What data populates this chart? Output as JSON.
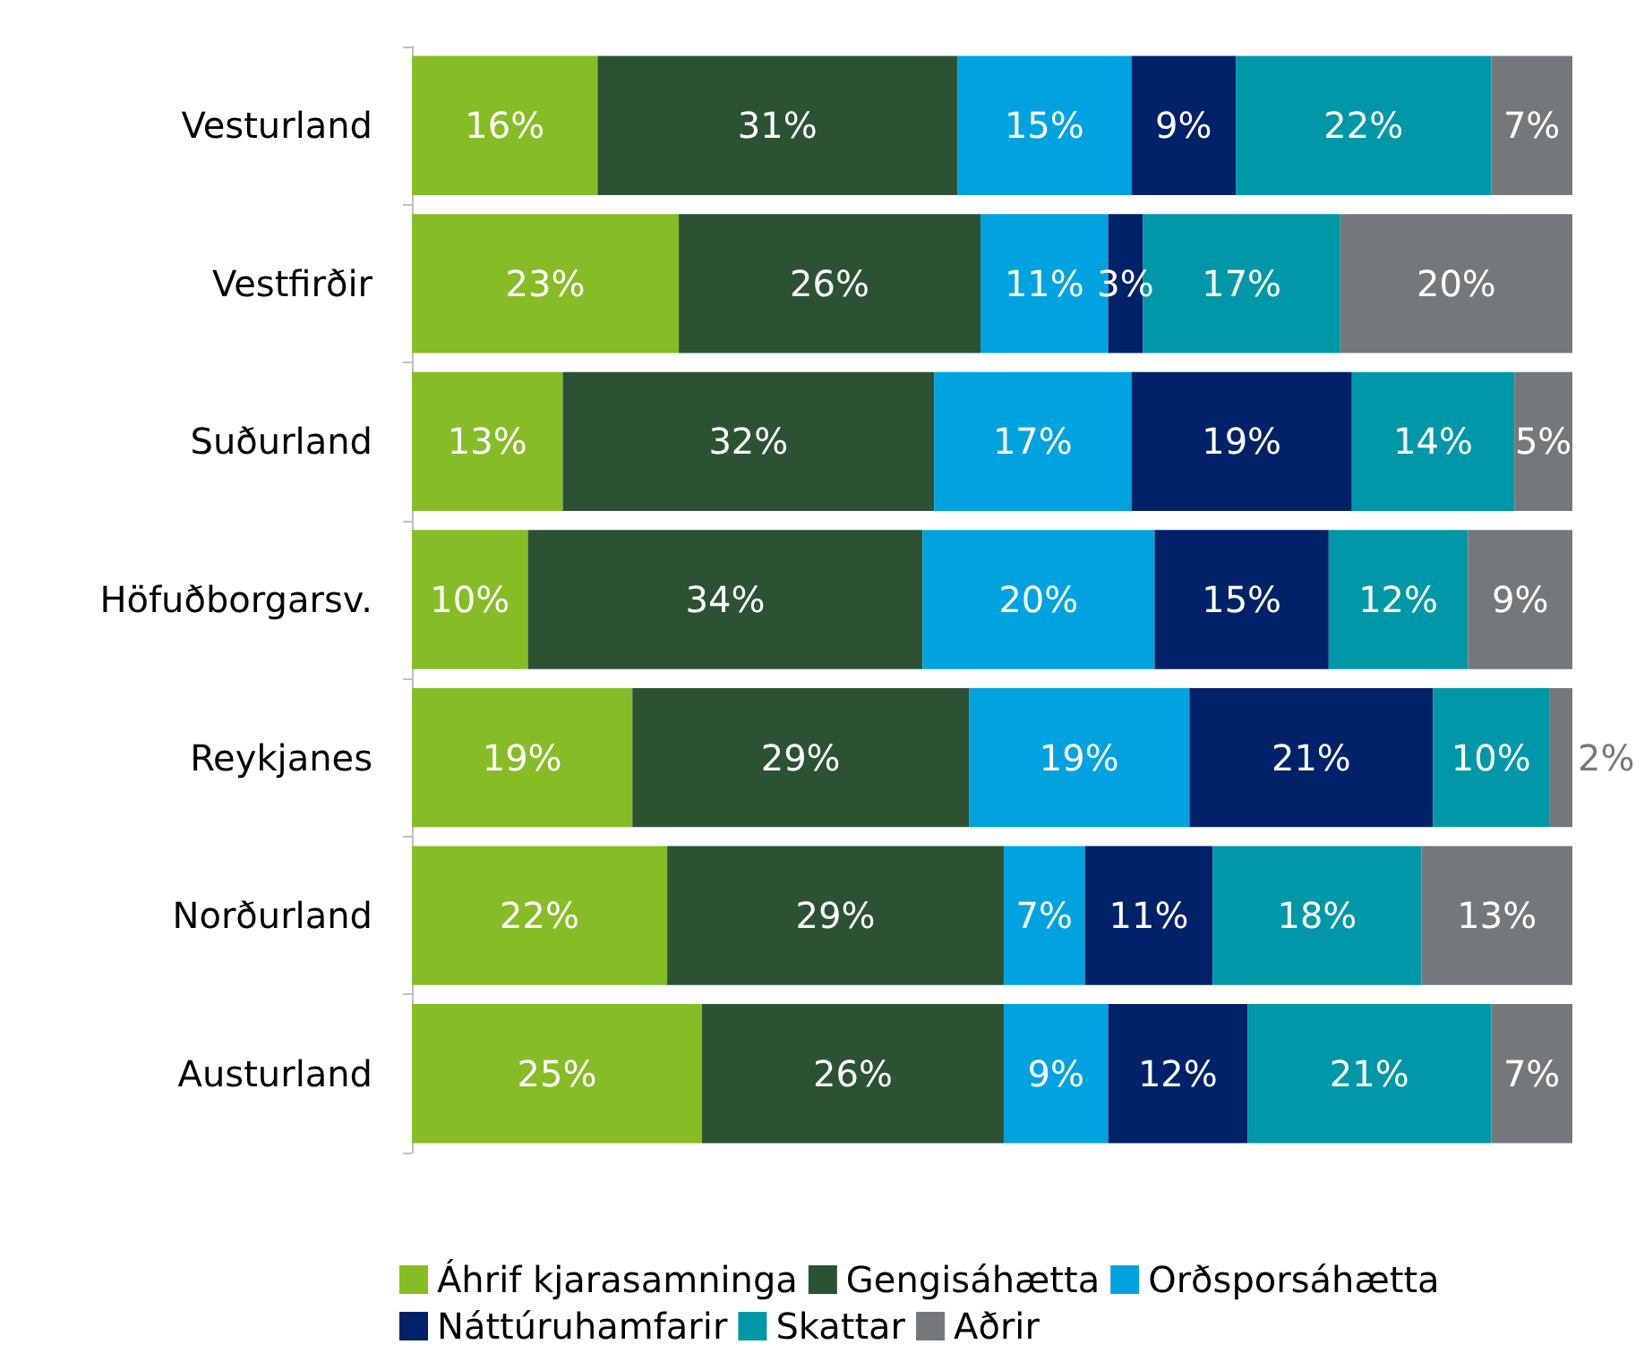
{
  "chart_data": {
    "type": "bar",
    "orientation": "horizontal",
    "stacked": true,
    "legend": "bottom",
    "categories": [
      "Vesturland",
      "Vestfirðir",
      "Suðurland",
      "Höfuðborgarsv.",
      "Reykjanes",
      "Norðurland",
      "Austurland"
    ],
    "series": [
      {
        "name": "Áhrif kjarasamninga",
        "color": "#86bc25",
        "values": [
          16,
          23,
          13,
          10,
          19,
          22,
          25
        ],
        "value_labels": [
          "16%",
          "23%",
          "13%",
          "10%",
          "19%",
          "22%",
          "25%"
        ]
      },
      {
        "name": "Gengisáhætta",
        "color": "#2c5234",
        "values": [
          31,
          26,
          32,
          34,
          29,
          29,
          26
        ],
        "value_labels": [
          "31%",
          "26%",
          "32%",
          "34%",
          "29%",
          "29%",
          "26%"
        ]
      },
      {
        "name": "Orðsporsáhætta",
        "color": "#00a3e0",
        "values": [
          15,
          11,
          17,
          20,
          19,
          7,
          9
        ],
        "value_labels": [
          "15%",
          "11%",
          "17%",
          "20%",
          "19%",
          "7%",
          "9%"
        ]
      },
      {
        "name": "Náttúruhamfarir",
        "color": "#012169",
        "values": [
          9,
          3,
          19,
          15,
          21,
          11,
          12
        ],
        "value_labels": [
          "9%",
          "3%",
          "19%",
          "15%",
          "21%",
          "11%",
          "12%"
        ]
      },
      {
        "name": "Skattar",
        "color": "#0097a9",
        "values": [
          22,
          17,
          14,
          12,
          10,
          18,
          21
        ],
        "value_labels": [
          "22%",
          "17%",
          "14%",
          "12%",
          "10%",
          "18%",
          "21%"
        ]
      },
      {
        "name": "Aðrir",
        "color": "#75787b",
        "values": [
          7,
          20,
          5,
          9,
          2,
          13,
          7
        ],
        "value_labels": [
          "7%",
          "20%",
          "5%",
          "9%",
          "2%",
          "13%",
          "7%"
        ]
      }
    ]
  }
}
